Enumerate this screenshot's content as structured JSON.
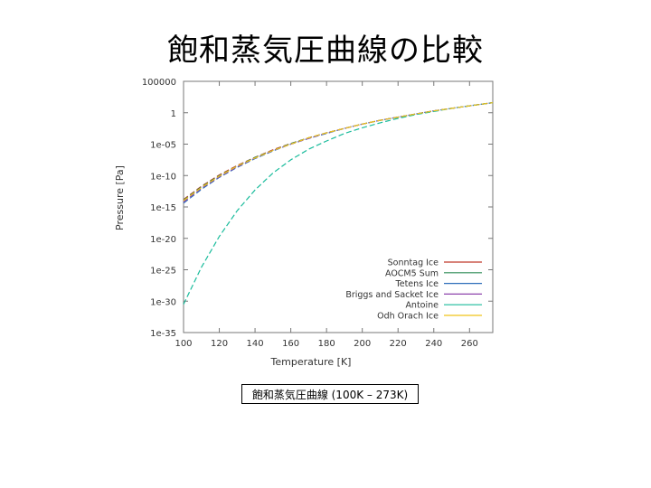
{
  "slide": {
    "title": "飽和蒸気圧曲線の比較",
    "caption": "飽和蒸気圧曲線 (100K – 273K)"
  },
  "chart_data": {
    "type": "line",
    "title": "",
    "xlabel": "Temperature [K]",
    "ylabel": "Pressure [Pa]",
    "xlim": [
      100,
      273
    ],
    "ylim_log10": [
      -35,
      5
    ],
    "y_scale": "log",
    "xticks": [
      100,
      120,
      140,
      160,
      180,
      200,
      220,
      240,
      260
    ],
    "yticks": [
      {
        "log10": 5,
        "label": "100000"
      },
      {
        "log10": 0,
        "label": "1"
      },
      {
        "log10": -5,
        "label": "1e-05"
      },
      {
        "log10": -10,
        "label": "1e-10"
      },
      {
        "log10": -15,
        "label": "1e-15"
      },
      {
        "log10": -20,
        "label": "1e-20"
      },
      {
        "log10": -25,
        "label": "1e-25"
      },
      {
        "log10": -30,
        "label": "1e-30"
      },
      {
        "log10": -35,
        "label": "1e-35"
      }
    ],
    "grid": false,
    "legend_position": "bottom-right",
    "x": [
      100,
      110,
      120,
      130,
      140,
      150,
      160,
      170,
      180,
      190,
      200,
      210,
      220,
      230,
      240,
      250,
      260,
      273
    ],
    "series": [
      {
        "name": "Sonntag Ice",
        "color": "#c0392b",
        "dash": "6,3",
        "log10_values": [
          -13.8,
          -11.7,
          -9.9,
          -8.4,
          -7.1,
          -5.9,
          -4.9,
          -4.0,
          -3.2,
          -2.5,
          -1.8,
          -1.2,
          -0.7,
          -0.2,
          0.3,
          0.7,
          1.1,
          1.6
        ]
      },
      {
        "name": "AOCM5 Sum",
        "color": "#2e8b57",
        "dash": "6,3",
        "log10_values": [
          -13.9,
          -11.8,
          -10.0,
          -8.5,
          -7.1,
          -6.0,
          -4.9,
          -4.0,
          -3.2,
          -2.5,
          -1.8,
          -1.2,
          -0.7,
          -0.2,
          0.3,
          0.7,
          1.1,
          1.6
        ]
      },
      {
        "name": "Tetens Ice",
        "color": "#2e6fba",
        "dash": "6,3",
        "log10_values": [
          -14.4,
          -12.2,
          -10.3,
          -8.7,
          -7.3,
          -6.1,
          -5.0,
          -4.1,
          -3.3,
          -2.5,
          -1.8,
          -1.2,
          -0.7,
          -0.2,
          0.3,
          0.7,
          1.1,
          1.6
        ]
      },
      {
        "name": "Briggs and Sacket Ice",
        "color": "#8e44ad",
        "dash": "6,3",
        "log10_values": [
          -14.2,
          -12.0,
          -10.2,
          -8.6,
          -7.2,
          -6.0,
          -5.0,
          -4.1,
          -3.2,
          -2.5,
          -1.8,
          -1.2,
          -0.7,
          -0.2,
          0.3,
          0.7,
          1.1,
          1.6
        ]
      },
      {
        "name": "Antoine",
        "color": "#1abc9c",
        "dash": "6,3",
        "log10_values": [
          -30.5,
          -24.6,
          -19.7,
          -15.6,
          -12.3,
          -9.6,
          -7.5,
          -5.8,
          -4.5,
          -3.3,
          -2.4,
          -1.6,
          -0.9,
          -0.3,
          0.2,
          0.7,
          1.1,
          1.6
        ]
      },
      {
        "name": "Odh Orach Ice",
        "color": "#f0c419",
        "dash": "6,3",
        "log10_values": [
          -14.0,
          -11.9,
          -10.1,
          -8.5,
          -7.2,
          -6.0,
          -5.0,
          -4.0,
          -3.2,
          -2.5,
          -1.8,
          -1.2,
          -0.7,
          -0.2,
          0.3,
          0.7,
          1.1,
          1.6
        ]
      }
    ]
  }
}
